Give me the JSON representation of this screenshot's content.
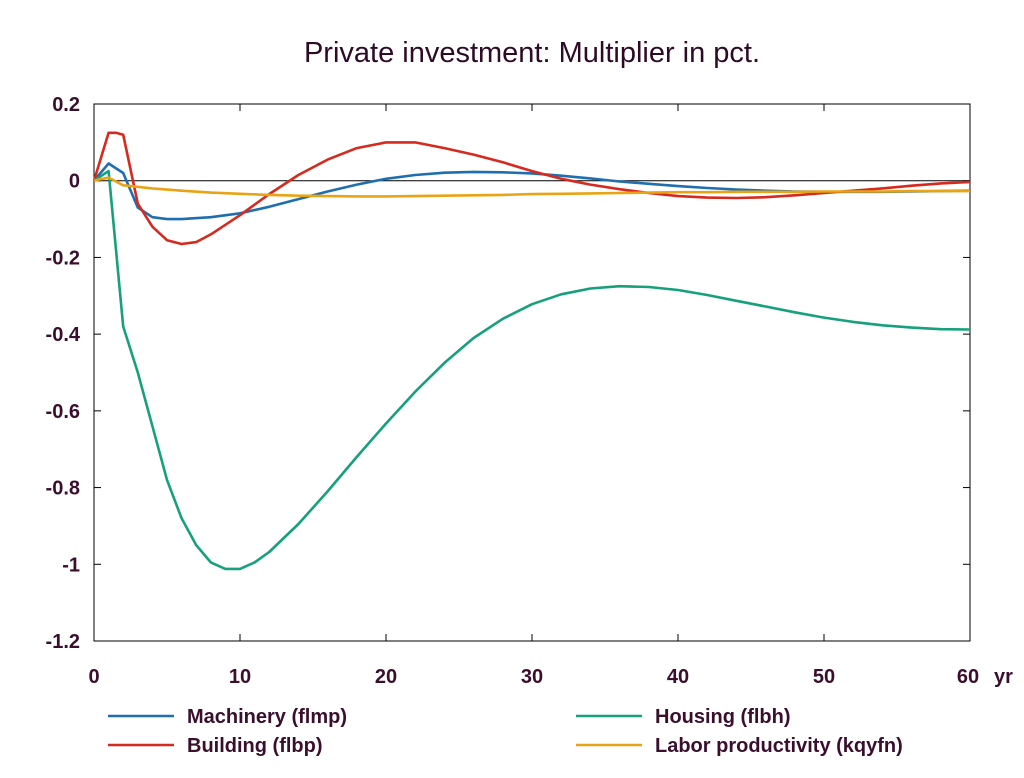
{
  "chart_data": {
    "type": "line",
    "title": "Private investment: Multiplier in pct.",
    "xlabel": "",
    "ylabel": "",
    "x_unit_label": "yr",
    "xlim": [
      0,
      60
    ],
    "ylim": [
      -1.2,
      0.2
    ],
    "x_ticks": [
      0,
      10,
      20,
      30,
      40,
      50,
      60
    ],
    "y_ticks": [
      0.2,
      0,
      -0.2,
      -0.4,
      -0.6,
      -0.8,
      -1,
      -1.2
    ],
    "grid": false,
    "legend_position": "bottom",
    "series": [
      {
        "name": "Machinery (flmp)",
        "color": "#1f6fb0",
        "points": [
          [
            0,
            0
          ],
          [
            1,
            0.045
          ],
          [
            2,
            0.02
          ],
          [
            3,
            -0.07
          ],
          [
            4,
            -0.095
          ],
          [
            5,
            -0.1
          ],
          [
            6,
            -0.1
          ],
          [
            8,
            -0.095
          ],
          [
            10,
            -0.085
          ],
          [
            12,
            -0.068
          ],
          [
            14,
            -0.048
          ],
          [
            16,
            -0.028
          ],
          [
            18,
            -0.01
          ],
          [
            20,
            0.005
          ],
          [
            22,
            0.015
          ],
          [
            24,
            0.021
          ],
          [
            26,
            0.023
          ],
          [
            28,
            0.022
          ],
          [
            30,
            0.019
          ],
          [
            32,
            0.013
          ],
          [
            34,
            0.006
          ],
          [
            36,
            -0.002
          ],
          [
            38,
            -0.008
          ],
          [
            40,
            -0.014
          ],
          [
            42,
            -0.019
          ],
          [
            44,
            -0.023
          ],
          [
            46,
            -0.026
          ],
          [
            48,
            -0.028
          ],
          [
            50,
            -0.029
          ],
          [
            52,
            -0.029
          ],
          [
            54,
            -0.029
          ],
          [
            56,
            -0.028
          ],
          [
            58,
            -0.027
          ],
          [
            60,
            -0.026
          ]
        ]
      },
      {
        "name": "Building (flbp)",
        "color": "#d62a1e",
        "points": [
          [
            0,
            0
          ],
          [
            1,
            0.125
          ],
          [
            1.5,
            0.125
          ],
          [
            2,
            0.12
          ],
          [
            3,
            -0.06
          ],
          [
            4,
            -0.12
          ],
          [
            5,
            -0.155
          ],
          [
            6,
            -0.165
          ],
          [
            7,
            -0.16
          ],
          [
            8,
            -0.14
          ],
          [
            10,
            -0.09
          ],
          [
            12,
            -0.035
          ],
          [
            14,
            0.015
          ],
          [
            16,
            0.055
          ],
          [
            18,
            0.085
          ],
          [
            20,
            0.1
          ],
          [
            22,
            0.1
          ],
          [
            24,
            0.085
          ],
          [
            26,
            0.068
          ],
          [
            28,
            0.048
          ],
          [
            30,
            0.025
          ],
          [
            32,
            0.005
          ],
          [
            34,
            -0.01
          ],
          [
            36,
            -0.022
          ],
          [
            38,
            -0.032
          ],
          [
            40,
            -0.04
          ],
          [
            42,
            -0.044
          ],
          [
            44,
            -0.045
          ],
          [
            46,
            -0.043
          ],
          [
            48,
            -0.038
          ],
          [
            50,
            -0.032
          ],
          [
            52,
            -0.026
          ],
          [
            54,
            -0.02
          ],
          [
            56,
            -0.013
          ],
          [
            58,
            -0.007
          ],
          [
            60,
            -0.003
          ]
        ]
      },
      {
        "name": "Housing (flbh)",
        "color": "#16a07c",
        "points": [
          [
            0,
            0
          ],
          [
            1,
            0.025
          ],
          [
            2,
            -0.38
          ],
          [
            3,
            -0.5
          ],
          [
            4,
            -0.64
          ],
          [
            5,
            -0.78
          ],
          [
            6,
            -0.88
          ],
          [
            7,
            -0.95
          ],
          [
            8,
            -0.995
          ],
          [
            9,
            -1.012
          ],
          [
            10,
            -1.012
          ],
          [
            11,
            -0.995
          ],
          [
            12,
            -0.968
          ],
          [
            14,
            -0.895
          ],
          [
            16,
            -0.81
          ],
          [
            18,
            -0.72
          ],
          [
            20,
            -0.633
          ],
          [
            22,
            -0.55
          ],
          [
            24,
            -0.475
          ],
          [
            26,
            -0.41
          ],
          [
            28,
            -0.36
          ],
          [
            30,
            -0.322
          ],
          [
            32,
            -0.296
          ],
          [
            34,
            -0.281
          ],
          [
            36,
            -0.275
          ],
          [
            38,
            -0.277
          ],
          [
            40,
            -0.285
          ],
          [
            42,
            -0.298
          ],
          [
            44,
            -0.313
          ],
          [
            46,
            -0.328
          ],
          [
            48,
            -0.343
          ],
          [
            50,
            -0.357
          ],
          [
            52,
            -0.368
          ],
          [
            54,
            -0.377
          ],
          [
            56,
            -0.383
          ],
          [
            58,
            -0.387
          ],
          [
            60,
            -0.388
          ]
        ]
      },
      {
        "name": "Labor productivity (kqyfn)",
        "color": "#e8a414",
        "points": [
          [
            0,
            0
          ],
          [
            1,
            0.008
          ],
          [
            2,
            -0.012
          ],
          [
            4,
            -0.02
          ],
          [
            6,
            -0.026
          ],
          [
            8,
            -0.031
          ],
          [
            10,
            -0.034
          ],
          [
            12,
            -0.037
          ],
          [
            14,
            -0.039
          ],
          [
            16,
            -0.04
          ],
          [
            18,
            -0.041
          ],
          [
            20,
            -0.041
          ],
          [
            22,
            -0.04
          ],
          [
            24,
            -0.039
          ],
          [
            26,
            -0.038
          ],
          [
            28,
            -0.037
          ],
          [
            30,
            -0.035
          ],
          [
            32,
            -0.034
          ],
          [
            34,
            -0.033
          ],
          [
            36,
            -0.032
          ],
          [
            38,
            -0.031
          ],
          [
            40,
            -0.03
          ],
          [
            42,
            -0.03
          ],
          [
            44,
            -0.029
          ],
          [
            46,
            -0.029
          ],
          [
            48,
            -0.029
          ],
          [
            50,
            -0.028
          ],
          [
            52,
            -0.028
          ],
          [
            54,
            -0.028
          ],
          [
            56,
            -0.027
          ],
          [
            58,
            -0.027
          ],
          [
            60,
            -0.027
          ]
        ]
      }
    ]
  }
}
